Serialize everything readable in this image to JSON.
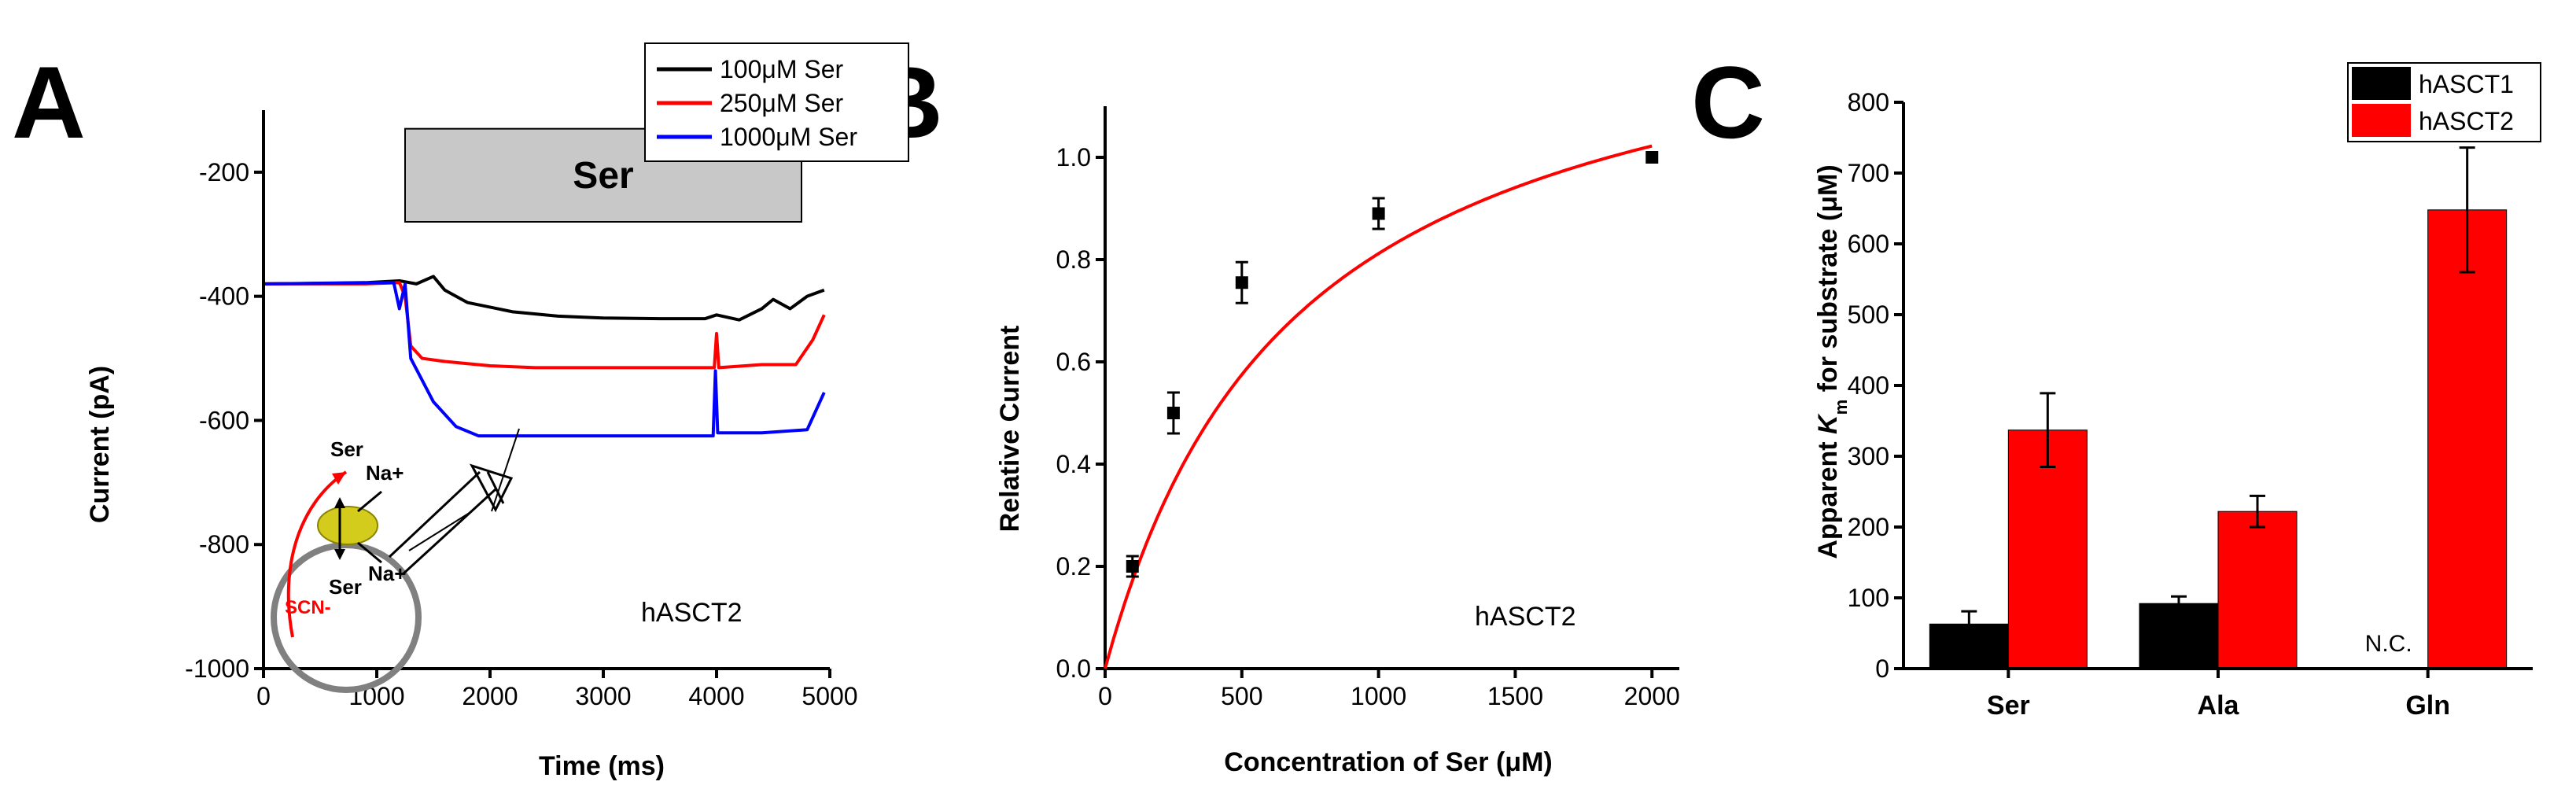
{
  "panels": {
    "a": "A",
    "b": "B",
    "c": "C"
  },
  "chart_data": [
    {
      "type": "line",
      "panel": "A",
      "xlabel": "Time (ms)",
      "ylabel": "Current (pA)",
      "xlim": [
        0,
        5000
      ],
      "ylim": [
        -1000,
        -100
      ],
      "xticks": [
        0,
        1000,
        2000,
        3000,
        4000,
        5000
      ],
      "yticks": [
        -1000,
        -800,
        -600,
        -400,
        -200
      ],
      "application_bar": {
        "label": "Ser",
        "start": 1250,
        "end": 4750,
        "color": "#c8c8c8"
      },
      "annotation": "hASCT2",
      "inset_labels": {
        "ser_top": "Ser",
        "na_top": "Na+",
        "ser_bottom": "Ser",
        "na_bottom": "Na+",
        "scn": "SCN-"
      },
      "series": [
        {
          "name": "100μM Ser",
          "color": "#000000",
          "x": [
            0,
            900,
            1200,
            1350,
            1500,
            1600,
            1800,
            2200,
            2600,
            3000,
            3500,
            3900,
            4000,
            4200,
            4400,
            4500,
            4650,
            4800,
            4950
          ],
          "y": [
            -380,
            -378,
            -375,
            -380,
            -368,
            -390,
            -410,
            -425,
            -432,
            -435,
            -436,
            -436,
            -430,
            -438,
            -420,
            -405,
            -420,
            -400,
            -390
          ]
        },
        {
          "name": "250μM Ser",
          "color": "#ff0000",
          "x": [
            0,
            900,
            1200,
            1250,
            1300,
            1400,
            1600,
            2000,
            2400,
            3000,
            3500,
            3980,
            4000,
            4020,
            4400,
            4700,
            4850,
            4950
          ],
          "y": [
            -380,
            -380,
            -378,
            -400,
            -480,
            -500,
            -505,
            -512,
            -515,
            -515,
            -515,
            -515,
            -460,
            -515,
            -510,
            -510,
            -470,
            -430
          ]
        },
        {
          "name": "1000μM Ser",
          "color": "#0000ff",
          "x": [
            0,
            1150,
            1200,
            1250,
            1300,
            1500,
            1700,
            1900,
            2200,
            2600,
            3000,
            3500,
            3970,
            3990,
            4010,
            4400,
            4800,
            4950
          ],
          "y": [
            -380,
            -378,
            -420,
            -380,
            -500,
            -570,
            -610,
            -625,
            -625,
            -625,
            -625,
            -625,
            -625,
            -520,
            -620,
            -620,
            -615,
            -555
          ]
        }
      ]
    },
    {
      "type": "scatter",
      "panel": "B",
      "xlabel": "Concentration of Ser (μM)",
      "ylabel": "Relative Current",
      "xlim": [
        0,
        2100
      ],
      "ylim": [
        0,
        1.1
      ],
      "xticks": [
        0,
        500,
        1000,
        1500,
        2000
      ],
      "yticks": [
        0.0,
        0.2,
        0.4,
        0.6,
        0.8,
        1.0
      ],
      "annotation": "hASCT2",
      "points": [
        {
          "x": 100,
          "y": 0.2,
          "err": 0.02
        },
        {
          "x": 250,
          "y": 0.5,
          "err": 0.04
        },
        {
          "x": 500,
          "y": 0.755,
          "err": 0.04
        },
        {
          "x": 1000,
          "y": 0.89,
          "err": 0.03
        },
        {
          "x": 2000,
          "y": 1.0,
          "err": 0.0
        }
      ],
      "fit": {
        "model": "Michaelis-Menten",
        "vmax": 1.38,
        "km": 700,
        "color": "#ff0000"
      }
    },
    {
      "type": "bar",
      "panel": "C",
      "ylabel_parts": {
        "pre": "Apparent ",
        "k": "K",
        "sub": "m",
        "post": " for substrate (μM)"
      },
      "ylim": [
        0,
        800
      ],
      "yticks": [
        0,
        100,
        200,
        300,
        400,
        500,
        600,
        700,
        800
      ],
      "categories": [
        "Ser",
        "Ala",
        "Gln"
      ],
      "series": [
        {
          "name": "hASCT1",
          "color": "#000000",
          "values": [
            63,
            92,
            null
          ],
          "errors": [
            18,
            10,
            null
          ]
        },
        {
          "name": "hASCT2",
          "color": "#ff0000",
          "values": [
            337,
            222,
            648
          ],
          "errors": [
            52,
            22,
            88
          ]
        }
      ],
      "nc_label": "N.C."
    }
  ]
}
